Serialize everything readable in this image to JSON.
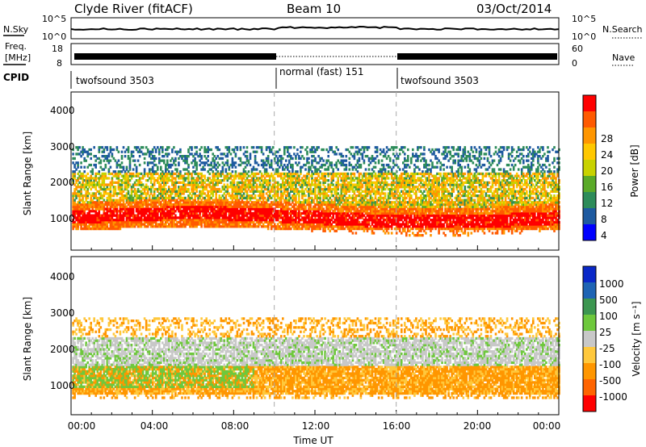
{
  "header": {
    "station": "Clyde River (fitACF)",
    "beam": "Beam 10",
    "date": "03/Oct/2014"
  },
  "noise_panel": {
    "left_label": "N.Sky",
    "left_ticks": [
      "10^5",
      "10^0"
    ],
    "right_ticks": [
      "10^5",
      "10^0"
    ],
    "right_label": "N.Search"
  },
  "freq_panel": {
    "left_label_1": "Freq.",
    "left_label_2": "[MHz]",
    "left_ticks": [
      "18",
      "8"
    ],
    "right_ticks": [
      "60",
      "0"
    ],
    "right_label": "Nave"
  },
  "cpid": {
    "label": "CPID",
    "segments": [
      {
        "name": "twofsound 3503",
        "start": 0,
        "end": 10
      },
      {
        "name": "normal (fast) 151",
        "start": 10,
        "end": 16
      },
      {
        "name": "twofsound 3503",
        "start": 16,
        "end": 24
      }
    ]
  },
  "chart_data": [
    {
      "type": "heatmap",
      "title": "",
      "xlabel": "Time UT",
      "ylabel": "Slant Range [km]",
      "xlim": [
        0,
        24
      ],
      "ylim": [
        180,
        4500
      ],
      "x_ticks": [
        "00:00",
        "04:00",
        "08:00",
        "12:00",
        "16:00",
        "20:00",
        "00:00"
      ],
      "y_ticks": [
        "1000",
        "2000",
        "3000",
        "4000"
      ],
      "colorbar": {
        "label": "Power [dB]",
        "ticks": [
          "28",
          "24",
          "20",
          "16",
          "12",
          "8",
          "4"
        ],
        "colors": [
          "#ff0000",
          "#ff5a00",
          "#ff9600",
          "#ffc800",
          "#c8d200",
          "#5aaa28",
          "#2d8c5a",
          "#1e5aa0",
          "#0000ff"
        ]
      },
      "bands": [
        {
          "time": [
            0,
            24
          ],
          "range_km": [
            700,
            1300
          ],
          "value": "24-30 dB",
          "color": "#ff2800"
        },
        {
          "time": [
            0,
            24
          ],
          "range_km": [
            1400,
            2200
          ],
          "value": "12-24 dB",
          "color": "#ff9600"
        },
        {
          "time": [
            0,
            24
          ],
          "range_km": [
            2200,
            3000
          ],
          "value": "4-12 dB",
          "color": "#2d6eaa"
        }
      ]
    },
    {
      "type": "heatmap",
      "title": "",
      "xlabel": "Time UT",
      "ylabel": "Slant Range [km]",
      "xlim": [
        0,
        24
      ],
      "ylim": [
        180,
        4500
      ],
      "x_ticks": [
        "00:00",
        "04:00",
        "08:00",
        "12:00",
        "16:00",
        "20:00",
        "00:00"
      ],
      "y_ticks": [
        "1000",
        "2000",
        "3000",
        "4000"
      ],
      "colorbar": {
        "label": "Velocity [m s⁻¹]",
        "ticks": [
          "1000",
          "500",
          "100",
          "25",
          "-25",
          "-100",
          "-500",
          "-1000"
        ],
        "colors": [
          "#0a28c8",
          "#1e64b4",
          "#3c9650",
          "#6ec83c",
          "#c8c8c8",
          "#ffc83c",
          "#ff9600",
          "#ff6400",
          "#ff0000"
        ]
      },
      "bands": [
        {
          "time": [
            0,
            24
          ],
          "range_km": [
            600,
            1500
          ],
          "value": "-100 to -500 m/s",
          "color": "#ff8c14"
        },
        {
          "time": [
            0,
            24
          ],
          "range_km": [
            1500,
            2300
          ],
          "value": "-25 to 25 m/s",
          "color": "#c8c8c8"
        },
        {
          "time": [
            0,
            9
          ],
          "range_km": [
            900,
            1500
          ],
          "value": "25 to 100 m/s",
          "color": "#6ec83c"
        }
      ]
    }
  ]
}
